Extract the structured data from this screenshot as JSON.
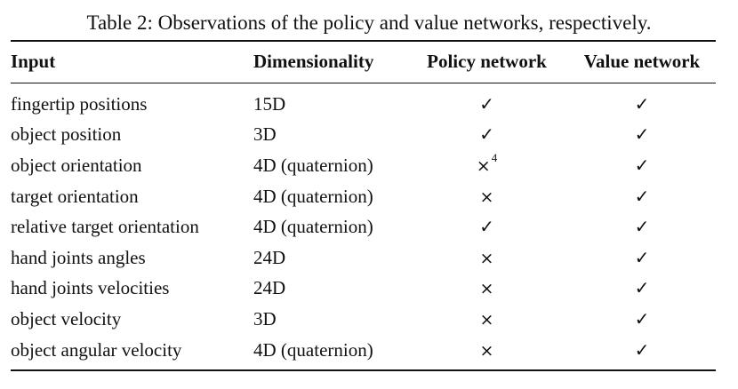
{
  "caption": "Table 2: Observations of the policy and value networks, respectively.",
  "columns": [
    "Input",
    "Dimensionality",
    "Policy network",
    "Value network"
  ],
  "rows": [
    {
      "input": "fingertip positions",
      "dim": "15D",
      "policy": "✓",
      "value": "✓",
      "policy_note": ""
    },
    {
      "input": "object position",
      "dim": "3D",
      "policy": "✓",
      "value": "✓",
      "policy_note": ""
    },
    {
      "input": "object orientation",
      "dim": "4D (quaternion)",
      "policy": "×",
      "value": "✓",
      "policy_note": "4"
    },
    {
      "input": "target orientation",
      "dim": "4D (quaternion)",
      "policy": "×",
      "value": "✓",
      "policy_note": ""
    },
    {
      "input": "relative target orientation",
      "dim": "4D (quaternion)",
      "policy": "✓",
      "value": "✓",
      "policy_note": ""
    },
    {
      "input": "hand joints angles",
      "dim": "24D",
      "policy": "×",
      "value": "✓",
      "policy_note": ""
    },
    {
      "input": "hand joints velocities",
      "dim": "24D",
      "policy": "×",
      "value": "✓",
      "policy_note": ""
    },
    {
      "input": "object velocity",
      "dim": "3D",
      "policy": "×",
      "value": "✓",
      "policy_note": ""
    },
    {
      "input": "object angular velocity",
      "dim": "4D (quaternion)",
      "policy": "×",
      "value": "✓",
      "policy_note": ""
    }
  ]
}
